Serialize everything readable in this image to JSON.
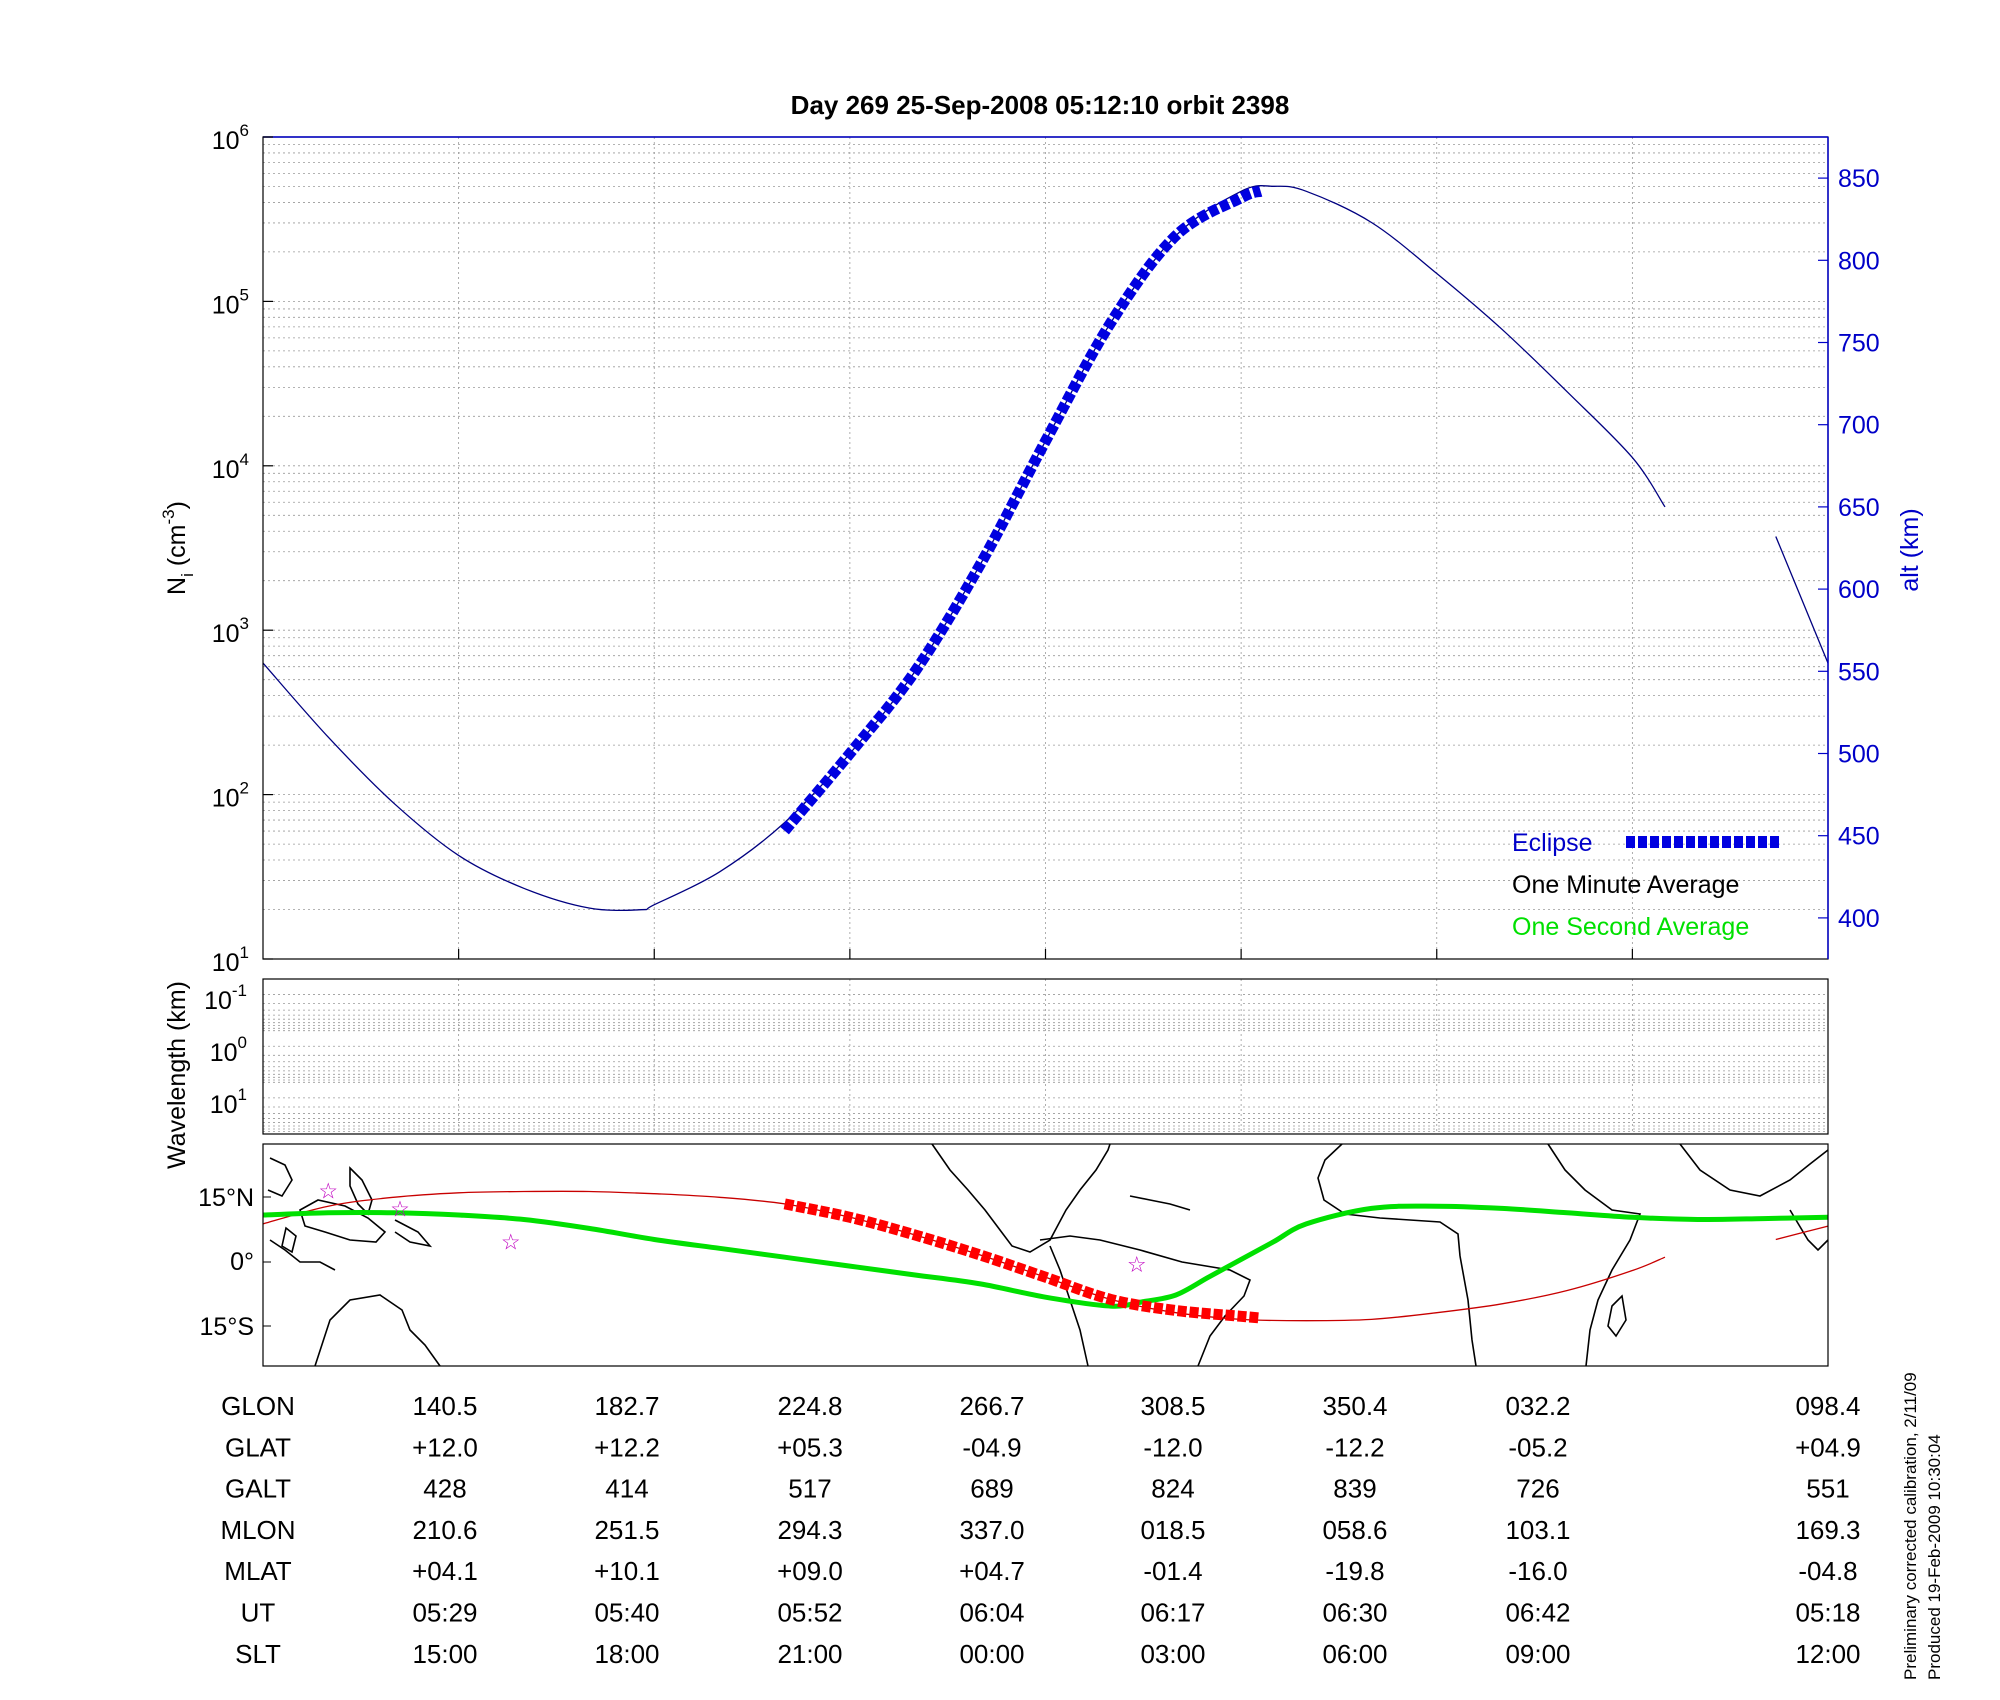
{
  "title": "Day 269  25-Sep-2008 05:12:10   orbit 2398",
  "colors": {
    "altitude_line": "#000080",
    "eclipse": "#0000e0",
    "one_second": "#00e000",
    "one_minute": "#000000",
    "track": "#c80000",
    "track_eclipse": "#ff0000",
    "stars": "#c000c0",
    "right_axis": "#0000c8"
  },
  "chart_data": [
    {
      "type": "line",
      "panel": "density_altitude",
      "ylabel": "N_i (cm^-3)",
      "ylabel_parts": {
        "base": "N",
        "sub": "i",
        "rest": " (cm",
        "sup": "-3",
        "end": ")"
      },
      "y_scale": "log",
      "ylim": [
        10,
        1000000
      ],
      "y_ticks": [
        {
          "base": "10",
          "exp": "1"
        },
        {
          "base": "10",
          "exp": "2"
        },
        {
          "base": "10",
          "exp": "3"
        },
        {
          "base": "10",
          "exp": "4"
        },
        {
          "base": "10",
          "exp": "5"
        },
        {
          "base": "10",
          "exp": "6"
        }
      ],
      "y2label": "alt (km)",
      "y2lim": [
        375,
        875
      ],
      "y2_ticks": [
        "400",
        "450",
        "500",
        "550",
        "600",
        "650",
        "700",
        "750",
        "800",
        "850"
      ],
      "x_unit": "SLT hours",
      "xlim": [
        12,
        36
      ],
      "grid": true,
      "legend_position": "bottom-right",
      "legend": [
        "Eclipse",
        "One Minute Average",
        "One Second Average"
      ],
      "altitude_series": {
        "name": "alt (km)",
        "x": [
          12.0,
          13.0,
          14.0,
          15.0,
          16.0,
          17.0,
          17.8,
          18.0,
          19.0,
          20.0,
          21.0,
          22.0,
          23.0,
          24.0,
          25.0,
          26.0,
          27.0,
          27.5,
          28.0,
          29.0,
          30.0,
          31.0,
          32.0,
          33.0,
          33.5
        ],
        "y": [
          555,
          510,
          470,
          438,
          418,
          406,
          405,
          408,
          428,
          458,
          500,
          550,
          615,
          690,
          762,
          815,
          842,
          845,
          842,
          823,
          792,
          758,
          720,
          680,
          650
        ]
      },
      "altitude_series_segment2": {
        "x": [
          35.2,
          36.0
        ],
        "y": [
          632,
          555
        ]
      },
      "eclipse_series": {
        "name": "Eclipse",
        "x": [
          20.0,
          21.0,
          22.0,
          23.0,
          24.0,
          25.0,
          26.0,
          27.0,
          27.3
        ],
        "y": [
          453,
          500,
          550,
          615,
          690,
          762,
          815,
          838,
          842
        ]
      }
    },
    {
      "type": "heatmap",
      "panel": "wavelength",
      "ylabel": "Wavelength (km)",
      "y_ticks": [
        {
          "base": "10",
          "exp": "-1"
        },
        {
          "base": "10",
          "exp": "0"
        },
        {
          "base": "10",
          "exp": "1"
        }
      ],
      "values": []
    },
    {
      "type": "line",
      "panel": "ground_track",
      "y_ticks": [
        "15°N",
        "0°",
        "15°S"
      ],
      "ylim": [
        -25,
        25
      ],
      "track_series": {
        "name": "ground track",
        "x": [
          12,
          13,
          14,
          15,
          16,
          17,
          18,
          19,
          20,
          21,
          22,
          23,
          24,
          25,
          26,
          27,
          28,
          29,
          30,
          31,
          32,
          33,
          33.5
        ],
        "y": [
          7,
          11,
          13,
          14,
          14.3,
          14.3,
          13.8,
          13,
          11.5,
          8.5,
          4.5,
          0,
          -5,
          -10,
          -13,
          -14.5,
          -14.8,
          -14.5,
          -13,
          -11,
          -8,
          -3.5,
          -0.5
        ]
      },
      "track_segment2": {
        "x": [
          35.2,
          36.0
        ],
        "y": [
          3.5,
          6.5
        ]
      },
      "eclipse_track": {
        "x": [
          20.0,
          21.0,
          22.0,
          23.0,
          24.0,
          25.0,
          26.0,
          27.0,
          27.3
        ],
        "y": [
          11.5,
          8.5,
          4.5,
          0,
          -5,
          -10,
          -12.5,
          -13.8,
          -14.2
        ]
      },
      "magnetic_equator": {
        "name": "One Second Average",
        "x": [
          12,
          13,
          14,
          15,
          16,
          17,
          18,
          19,
          20,
          21,
          22,
          23,
          24,
          25,
          25.5,
          26,
          26.5,
          27,
          27.5,
          28,
          29,
          30,
          31,
          32,
          33,
          34,
          35,
          36
        ],
        "y": [
          9,
          9.5,
          9.5,
          9,
          8,
          6,
          3.5,
          1.5,
          -0.5,
          -2.5,
          -4.5,
          -6.5,
          -9.5,
          -11.5,
          -10.5,
          -9,
          -5,
          -1,
          3,
          7,
          10.5,
          11,
          10.5,
          9.5,
          8.5,
          8,
          8.2,
          8.5
        ]
      },
      "stars_x": [
        13.0,
        14.1,
        15.8,
        25.4
      ],
      "stars_y": [
        14.5,
        10.5,
        3,
        -2
      ]
    }
  ],
  "table": {
    "row_labels": [
      "GLON",
      "GLAT",
      "GALT",
      "MLON",
      "MLAT",
      "UT",
      "SLT"
    ],
    "columns": [
      [
        "140.5",
        "+12.0",
        "428",
        "210.6",
        "+04.1",
        "05:29",
        "15:00"
      ],
      [
        "182.7",
        "+12.2",
        "414",
        "251.5",
        "+10.1",
        "05:40",
        "18:00"
      ],
      [
        "224.8",
        "+05.3",
        "517",
        "294.3",
        "+09.0",
        "05:52",
        "21:00"
      ],
      [
        "266.7",
        "-04.9",
        "689",
        "337.0",
        "+04.7",
        "06:04",
        "00:00"
      ],
      [
        "308.5",
        "-12.0",
        "824",
        "018.5",
        "-01.4",
        "06:17",
        "03:00"
      ],
      [
        "350.4",
        "-12.2",
        "839",
        "058.6",
        "-19.8",
        "06:30",
        "06:00"
      ],
      [
        "032.2",
        "-05.2",
        "726",
        "103.1",
        "-16.0",
        "06:42",
        "09:00"
      ],
      [
        "098.4",
        "+04.9",
        "551",
        "169.3",
        "-04.8",
        "05:18",
        "12:00"
      ]
    ]
  },
  "footer": {
    "line1": "Preliminary corrected calibration, 2/11/09",
    "line2": "Produced 19-Feb-2009 10:30:04"
  }
}
